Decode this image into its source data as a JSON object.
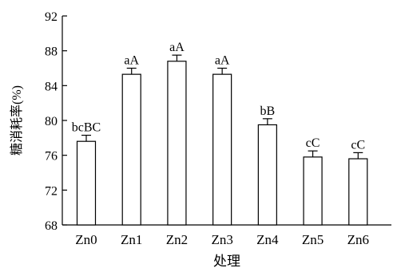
{
  "chart_data": {
    "type": "bar",
    "categories": [
      "Zn0",
      "Zn1",
      "Zn2",
      "Zn3",
      "Zn4",
      "Zn5",
      "Zn6"
    ],
    "values": [
      77.6,
      85.3,
      86.8,
      85.3,
      79.5,
      75.8,
      75.6
    ],
    "errors": [
      0.7,
      0.7,
      0.7,
      0.7,
      0.7,
      0.7,
      0.7
    ],
    "labels": [
      "bcBC",
      "aA",
      "aA",
      "aA",
      "bB",
      "cC",
      "cC"
    ],
    "xlabel": "处理",
    "ylabel": "糖消耗率(%)",
    "ylim": [
      68,
      92
    ],
    "yticks": [
      68,
      72,
      76,
      80,
      84,
      88,
      92
    ],
    "grid": false,
    "bar_color": "#ffffff",
    "stroke_color": "#000000"
  }
}
